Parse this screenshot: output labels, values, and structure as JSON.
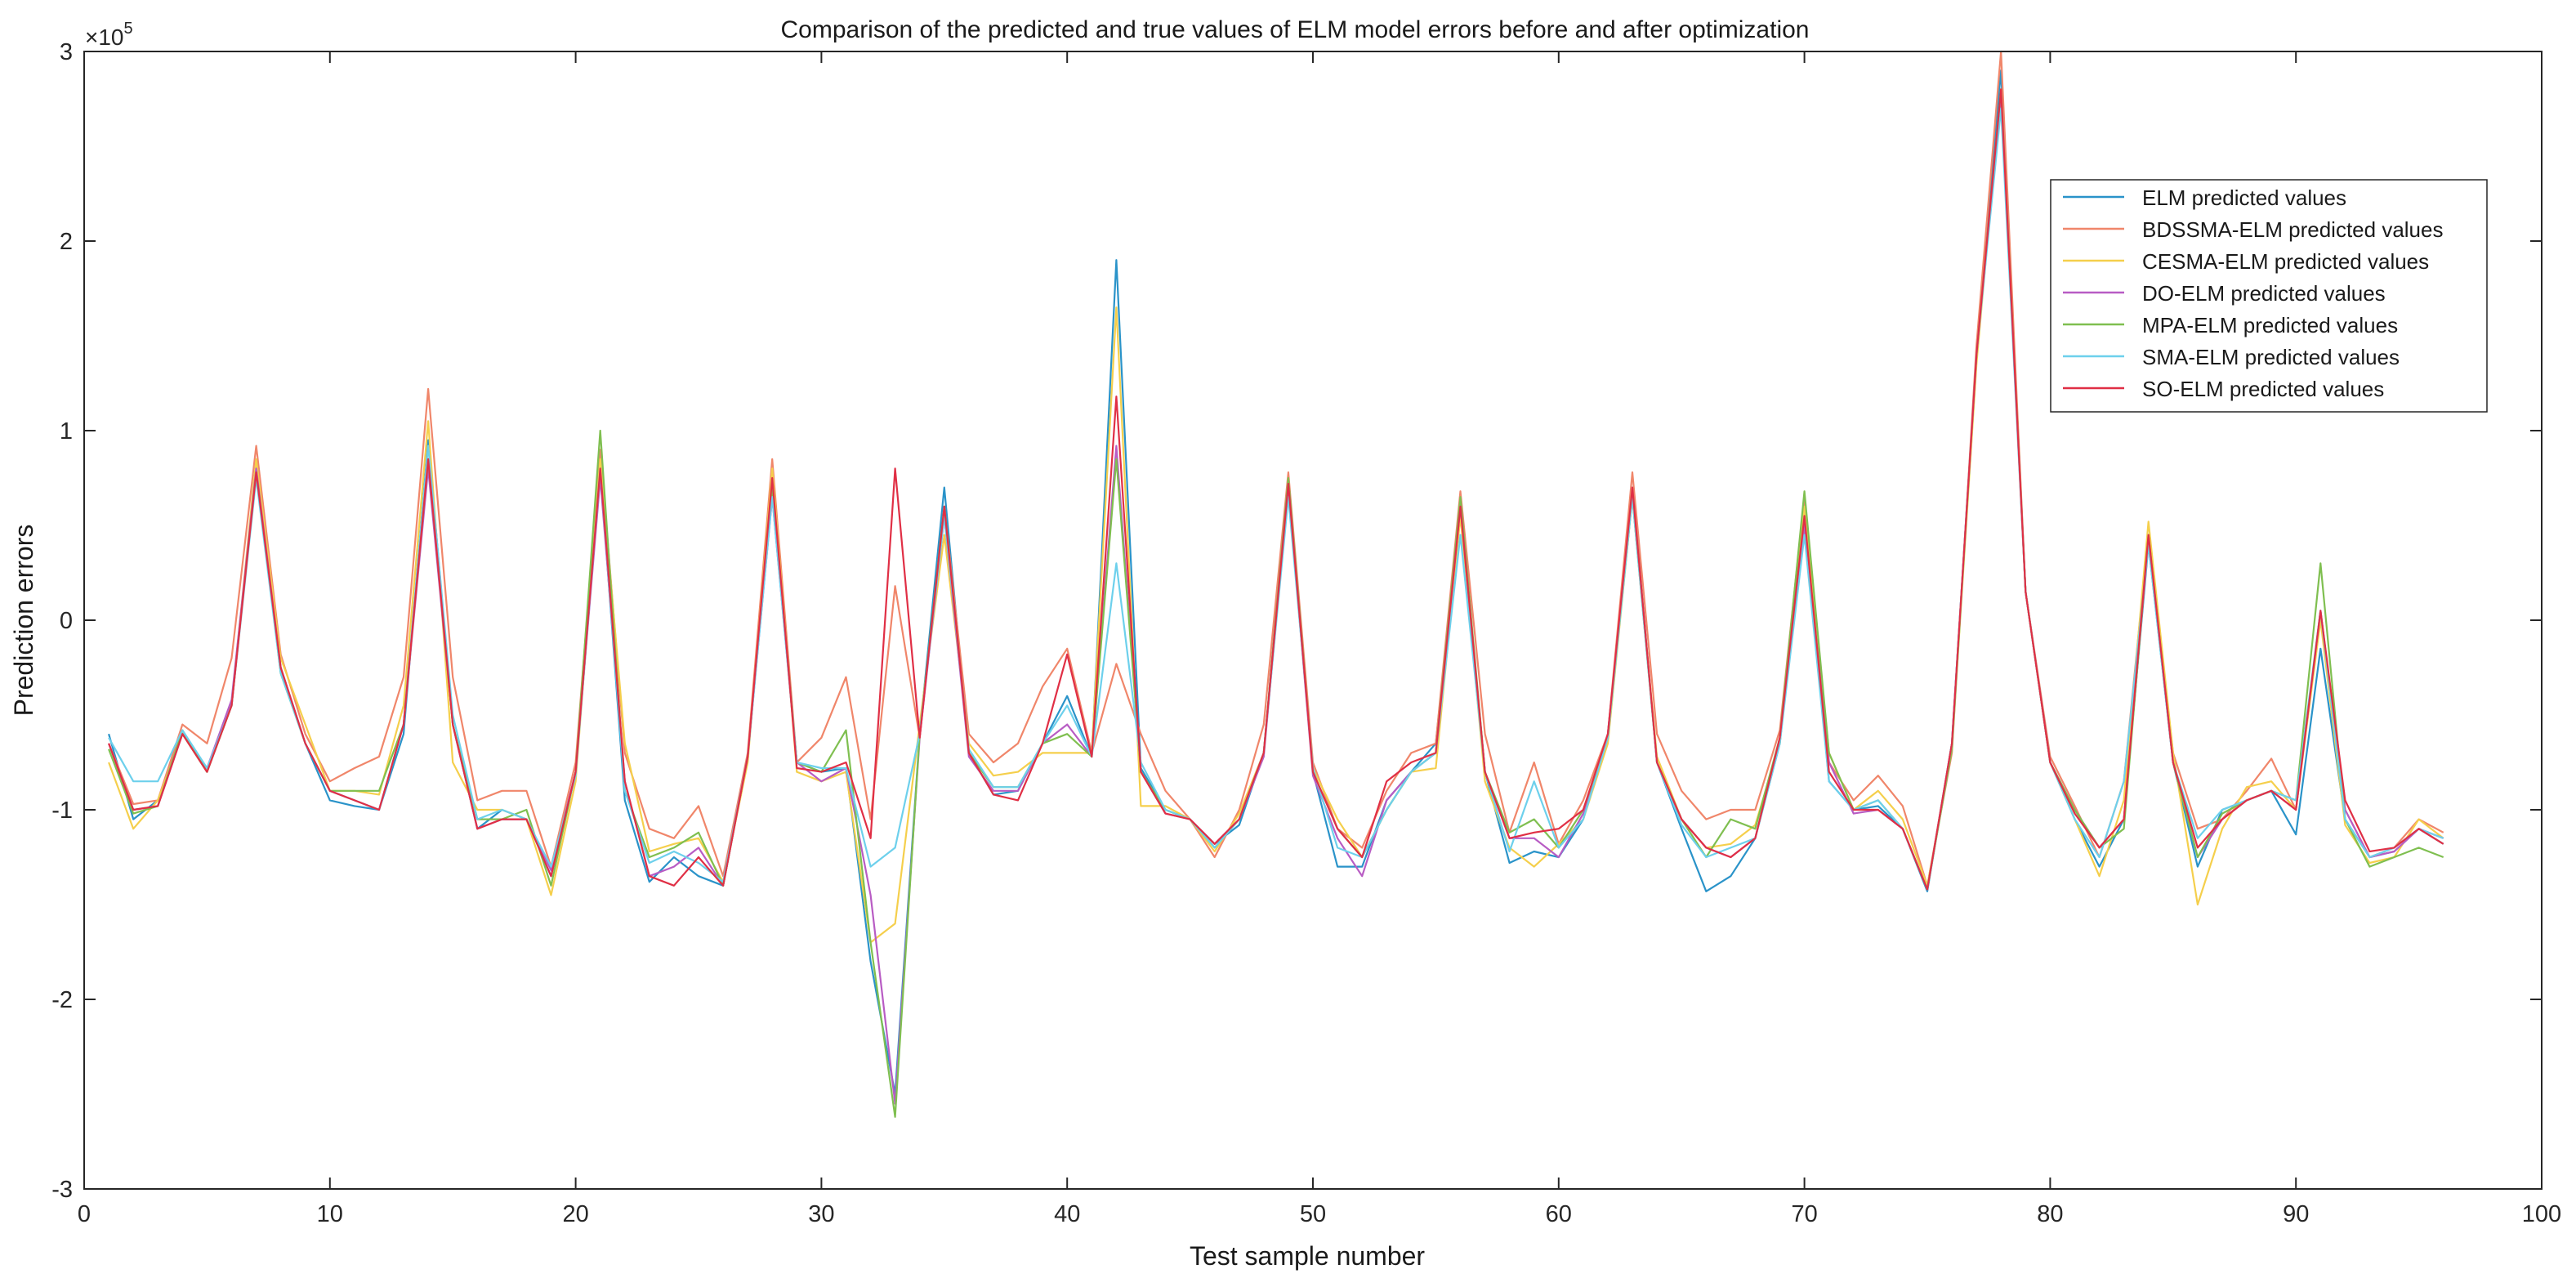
{
  "chart_data": {
    "type": "line",
    "title": "Comparison of the predicted and true values of ELM model errors before and after optimization",
    "xlabel": "Test sample number",
    "ylabel": "Prediction errors",
    "y_exponent_label": "×10",
    "y_exponent_power": "5",
    "xlim": [
      0,
      100
    ],
    "ylim": [
      -3,
      3
    ],
    "x_ticks": [
      0,
      10,
      20,
      30,
      40,
      50,
      60,
      70,
      80,
      90,
      100
    ],
    "y_ticks": [
      -3,
      -2,
      -1,
      0,
      1,
      2,
      3
    ],
    "x_tick_labels": [
      "0",
      "10",
      "20",
      "30",
      "40",
      "50",
      "60",
      "70",
      "80",
      "90",
      "100"
    ],
    "y_tick_labels": [
      "-3",
      "-2",
      "-1",
      "0",
      "1",
      "2",
      "3"
    ],
    "y_scale_factor": 100000,
    "grid": false,
    "legend_position": "top-right",
    "x": [
      1,
      2,
      3,
      4,
      5,
      6,
      7,
      8,
      9,
      10,
      11,
      12,
      13,
      14,
      15,
      16,
      17,
      18,
      19,
      20,
      21,
      22,
      23,
      24,
      25,
      26,
      27,
      28,
      29,
      30,
      31,
      32,
      33,
      34,
      35,
      36,
      37,
      38,
      39,
      40,
      41,
      42,
      43,
      44,
      45,
      46,
      47,
      48,
      49,
      50,
      51,
      52,
      53,
      54,
      55,
      56,
      57,
      58,
      59,
      60,
      61,
      62,
      63,
      64,
      65,
      66,
      67,
      68,
      69,
      70,
      71,
      72,
      73,
      74,
      75,
      76,
      77,
      78,
      79,
      80,
      81,
      82,
      83,
      84,
      85,
      86,
      87,
      88,
      89,
      90,
      91,
      92,
      93,
      94,
      95,
      96
    ],
    "series": [
      {
        "name": "ELM predicted values",
        "color": "#2a93c9",
        "values": [
          -0.6,
          -1.05,
          -0.95,
          -0.6,
          -0.8,
          -0.45,
          0.8,
          -0.25,
          -0.65,
          -0.95,
          -0.98,
          -1.0,
          -0.6,
          0.95,
          -0.55,
          -1.1,
          -1.0,
          -1.05,
          -1.35,
          -0.8,
          0.8,
          -0.95,
          -1.38,
          -1.25,
          -1.35,
          -1.4,
          -0.72,
          0.7,
          -0.75,
          -0.8,
          -0.78,
          -1.8,
          -2.5,
          -0.6,
          0.7,
          -0.7,
          -0.92,
          -0.9,
          -0.65,
          -0.4,
          -0.72,
          1.9,
          -0.78,
          -1.0,
          -1.05,
          -1.18,
          -1.08,
          -0.7,
          0.75,
          -0.8,
          -1.3,
          -1.3,
          -0.95,
          -0.8,
          -0.65,
          0.6,
          -0.8,
          -1.28,
          -1.22,
          -1.25,
          -1.05,
          -0.6,
          0.7,
          -0.75,
          -1.1,
          -1.43,
          -1.35,
          -1.15,
          -0.65,
          0.55,
          -0.85,
          -1.0,
          -0.98,
          -1.1,
          -1.43,
          -0.65,
          1.4,
          2.9,
          0.15,
          -0.75,
          -1.05,
          -1.3,
          -1.05,
          0.4,
          -0.75,
          -1.3,
          -1.0,
          -0.95,
          -0.9,
          -1.13,
          -0.15,
          -1.05,
          -1.25,
          -1.22,
          -1.1,
          -1.18
        ]
      },
      {
        "name": "BDSSMA-ELM predicted values",
        "color": "#f0866a",
        "values": [
          -0.65,
          -0.97,
          -0.95,
          -0.55,
          -0.65,
          -0.2,
          0.92,
          -0.18,
          -0.6,
          -0.85,
          -0.78,
          -0.72,
          -0.3,
          1.22,
          -0.3,
          -0.95,
          -0.9,
          -0.9,
          -1.3,
          -0.75,
          0.9,
          -0.7,
          -1.1,
          -1.15,
          -0.98,
          -1.35,
          -0.7,
          0.85,
          -0.75,
          -0.62,
          -0.3,
          -1.05,
          0.18,
          -0.62,
          0.6,
          -0.6,
          -0.75,
          -0.65,
          -0.35,
          -0.15,
          -0.7,
          -0.23,
          -0.6,
          -0.9,
          -1.05,
          -1.25,
          -1.0,
          -0.55,
          0.78,
          -0.75,
          -1.1,
          -1.2,
          -0.9,
          -0.7,
          -0.65,
          0.68,
          -0.6,
          -1.12,
          -0.75,
          -1.18,
          -0.95,
          -0.6,
          0.78,
          -0.6,
          -0.9,
          -1.05,
          -1.0,
          -1.0,
          -0.58,
          0.65,
          -0.75,
          -0.95,
          -0.82,
          -0.98,
          -1.4,
          -0.7,
          1.45,
          3.0,
          0.15,
          -0.72,
          -0.98,
          -1.25,
          -0.85,
          0.45,
          -0.7,
          -1.1,
          -1.05,
          -0.9,
          -0.73,
          -1.0,
          0.05,
          -1.0,
          -1.25,
          -1.2,
          -1.05,
          -1.12
        ]
      },
      {
        "name": "CESMA-ELM predicted values",
        "color": "#f5cf4c",
        "values": [
          -0.75,
          -1.1,
          -0.95,
          -0.6,
          -0.8,
          -0.45,
          0.85,
          -0.2,
          -0.55,
          -0.9,
          -0.9,
          -0.92,
          -0.45,
          1.05,
          -0.75,
          -1.0,
          -1.0,
          -1.05,
          -1.45,
          -0.85,
          0.85,
          -0.65,
          -1.22,
          -1.18,
          -1.15,
          -1.38,
          -0.75,
          0.8,
          -0.8,
          -0.85,
          -0.8,
          -1.7,
          -1.6,
          -0.55,
          0.45,
          -0.65,
          -0.82,
          -0.8,
          -0.7,
          -0.7,
          -0.7,
          1.65,
          -0.98,
          -0.98,
          -1.05,
          -1.22,
          -1.02,
          -0.7,
          0.7,
          -0.78,
          -1.05,
          -1.25,
          -1.0,
          -0.8,
          -0.78,
          0.55,
          -0.85,
          -1.2,
          -1.3,
          -1.18,
          -1.05,
          -0.65,
          0.65,
          -0.72,
          -1.05,
          -1.2,
          -1.18,
          -1.08,
          -0.65,
          0.6,
          -0.7,
          -1.0,
          -0.9,
          -1.05,
          -1.4,
          -0.68,
          1.35,
          2.8,
          0.15,
          -0.75,
          -1.05,
          -1.35,
          -0.95,
          0.52,
          -0.7,
          -1.5,
          -1.1,
          -0.88,
          -0.85,
          -1.0,
          0.0,
          -1.08,
          -1.28,
          -1.25,
          -1.05,
          -1.15
        ]
      },
      {
        "name": "DO-ELM predicted values",
        "color": "#b85cc4",
        "values": [
          -0.65,
          -1.0,
          -0.98,
          -0.6,
          -0.78,
          -0.42,
          0.8,
          -0.25,
          -0.65,
          -0.9,
          -0.95,
          -1.0,
          -0.55,
          0.8,
          -0.55,
          -1.1,
          -1.05,
          -1.05,
          -1.32,
          -0.8,
          0.75,
          -0.85,
          -1.35,
          -1.3,
          -1.2,
          -1.4,
          -0.72,
          0.65,
          -0.75,
          -0.85,
          -0.78,
          -1.45,
          -2.55,
          -0.62,
          0.55,
          -0.72,
          -0.9,
          -0.9,
          -0.65,
          -0.55,
          -0.72,
          0.92,
          -0.8,
          -1.02,
          -1.05,
          -1.18,
          -1.05,
          -0.72,
          0.7,
          -0.82,
          -1.15,
          -1.35,
          -0.95,
          -0.8,
          -0.7,
          0.6,
          -0.8,
          -1.15,
          -1.15,
          -1.25,
          -1.02,
          -0.6,
          0.68,
          -0.75,
          -1.05,
          -1.2,
          -1.25,
          -1.15,
          -0.62,
          0.5,
          -0.75,
          -1.02,
          -1.0,
          -1.1,
          -1.42,
          -0.65,
          1.4,
          2.75,
          0.15,
          -0.75,
          -1.0,
          -1.2,
          -1.05,
          0.42,
          -0.75,
          -1.25,
          -1.05,
          -0.95,
          -0.9,
          -1.0,
          0.05,
          -1.0,
          -1.25,
          -1.22,
          -1.1,
          -1.15
        ]
      },
      {
        "name": "MPA-ELM predicted values",
        "color": "#7fbf50",
        "values": [
          -0.68,
          -1.02,
          -0.98,
          -0.58,
          -0.8,
          -0.45,
          0.78,
          -0.28,
          -0.65,
          -0.9,
          -0.9,
          -0.9,
          -0.55,
          0.85,
          -0.55,
          -1.05,
          -1.05,
          -1.0,
          -1.4,
          -0.8,
          1.0,
          -0.9,
          -1.25,
          -1.2,
          -1.12,
          -1.4,
          -0.72,
          0.7,
          -0.75,
          -0.8,
          -0.58,
          -1.7,
          -2.62,
          -0.6,
          0.6,
          -0.7,
          -0.88,
          -0.88,
          -0.65,
          -0.6,
          -0.72,
          0.85,
          -0.8,
          -1.0,
          -1.05,
          -1.2,
          -1.05,
          -0.7,
          0.75,
          -0.8,
          -1.1,
          -1.25,
          -1.0,
          -0.8,
          -0.7,
          0.65,
          -0.8,
          -1.12,
          -1.05,
          -1.2,
          -1.0,
          -0.62,
          0.65,
          -0.75,
          -1.05,
          -1.25,
          -1.05,
          -1.1,
          -0.62,
          0.68,
          -0.7,
          -1.0,
          -0.95,
          -1.1,
          -1.42,
          -0.68,
          1.4,
          2.8,
          0.15,
          -0.75,
          -1.0,
          -1.2,
          -1.1,
          0.45,
          -0.75,
          -1.25,
          -1.02,
          -0.95,
          -0.9,
          -0.95,
          0.3,
          -1.05,
          -1.3,
          -1.25,
          -1.2,
          -1.25
        ]
      },
      {
        "name": "SMA-ELM predicted values",
        "color": "#6dd0ec",
        "values": [
          -0.62,
          -0.85,
          -0.85,
          -0.58,
          -0.78,
          -0.45,
          0.75,
          -0.28,
          -0.65,
          -0.9,
          -0.95,
          -1.0,
          -0.55,
          0.92,
          -0.5,
          -1.05,
          -1.0,
          -1.05,
          -1.3,
          -0.82,
          0.8,
          -0.9,
          -1.28,
          -1.22,
          -1.28,
          -1.38,
          -0.72,
          0.65,
          -0.75,
          -0.78,
          -0.78,
          -1.3,
          -1.2,
          -0.6,
          0.55,
          -0.68,
          -0.88,
          -0.88,
          -0.65,
          -0.45,
          -0.72,
          0.3,
          -0.75,
          -1.0,
          -1.05,
          -1.2,
          -1.05,
          -0.7,
          0.65,
          -0.78,
          -1.2,
          -1.25,
          -1.0,
          -0.8,
          -0.7,
          0.45,
          -0.8,
          -1.22,
          -0.85,
          -1.2,
          -1.05,
          -0.62,
          0.65,
          -0.75,
          -1.08,
          -1.25,
          -1.2,
          -1.15,
          -0.65,
          0.45,
          -0.85,
          -1.0,
          -0.95,
          -1.1,
          -1.42,
          -0.65,
          1.4,
          2.7,
          0.15,
          -0.75,
          -1.05,
          -1.25,
          -0.85,
          0.4,
          -0.75,
          -1.15,
          -1.0,
          -0.95,
          -0.9,
          -0.95,
          0.05,
          -1.05,
          -1.25,
          -1.2,
          -1.1,
          -1.15
        ]
      },
      {
        "name": "SO-ELM predicted values",
        "color": "#e02f45",
        "values": [
          -0.65,
          -1.0,
          -0.98,
          -0.6,
          -0.8,
          -0.45,
          0.78,
          -0.25,
          -0.65,
          -0.9,
          -0.95,
          -1.0,
          -0.55,
          0.85,
          -0.55,
          -1.1,
          -1.05,
          -1.05,
          -1.35,
          -0.8,
          0.8,
          -0.85,
          -1.35,
          -1.4,
          -1.25,
          -1.4,
          -0.72,
          0.75,
          -0.78,
          -0.8,
          -0.75,
          -1.15,
          0.8,
          -0.62,
          0.6,
          -0.7,
          -0.92,
          -0.95,
          -0.65,
          -0.18,
          -0.72,
          1.18,
          -0.8,
          -1.02,
          -1.05,
          -1.18,
          -1.05,
          -0.7,
          0.72,
          -0.8,
          -1.1,
          -1.25,
          -0.85,
          -0.75,
          -0.7,
          0.6,
          -0.8,
          -1.15,
          -1.12,
          -1.1,
          -1.0,
          -0.6,
          0.7,
          -0.75,
          -1.05,
          -1.2,
          -1.25,
          -1.15,
          -0.62,
          0.55,
          -0.8,
          -1.0,
          -1.0,
          -1.1,
          -1.42,
          -0.65,
          1.4,
          2.8,
          0.15,
          -0.75,
          -1.02,
          -1.2,
          -1.05,
          0.45,
          -0.75,
          -1.2,
          -1.05,
          -0.95,
          -0.9,
          -1.0,
          0.05,
          -0.95,
          -1.22,
          -1.2,
          -1.1,
          -1.18
        ]
      }
    ]
  }
}
